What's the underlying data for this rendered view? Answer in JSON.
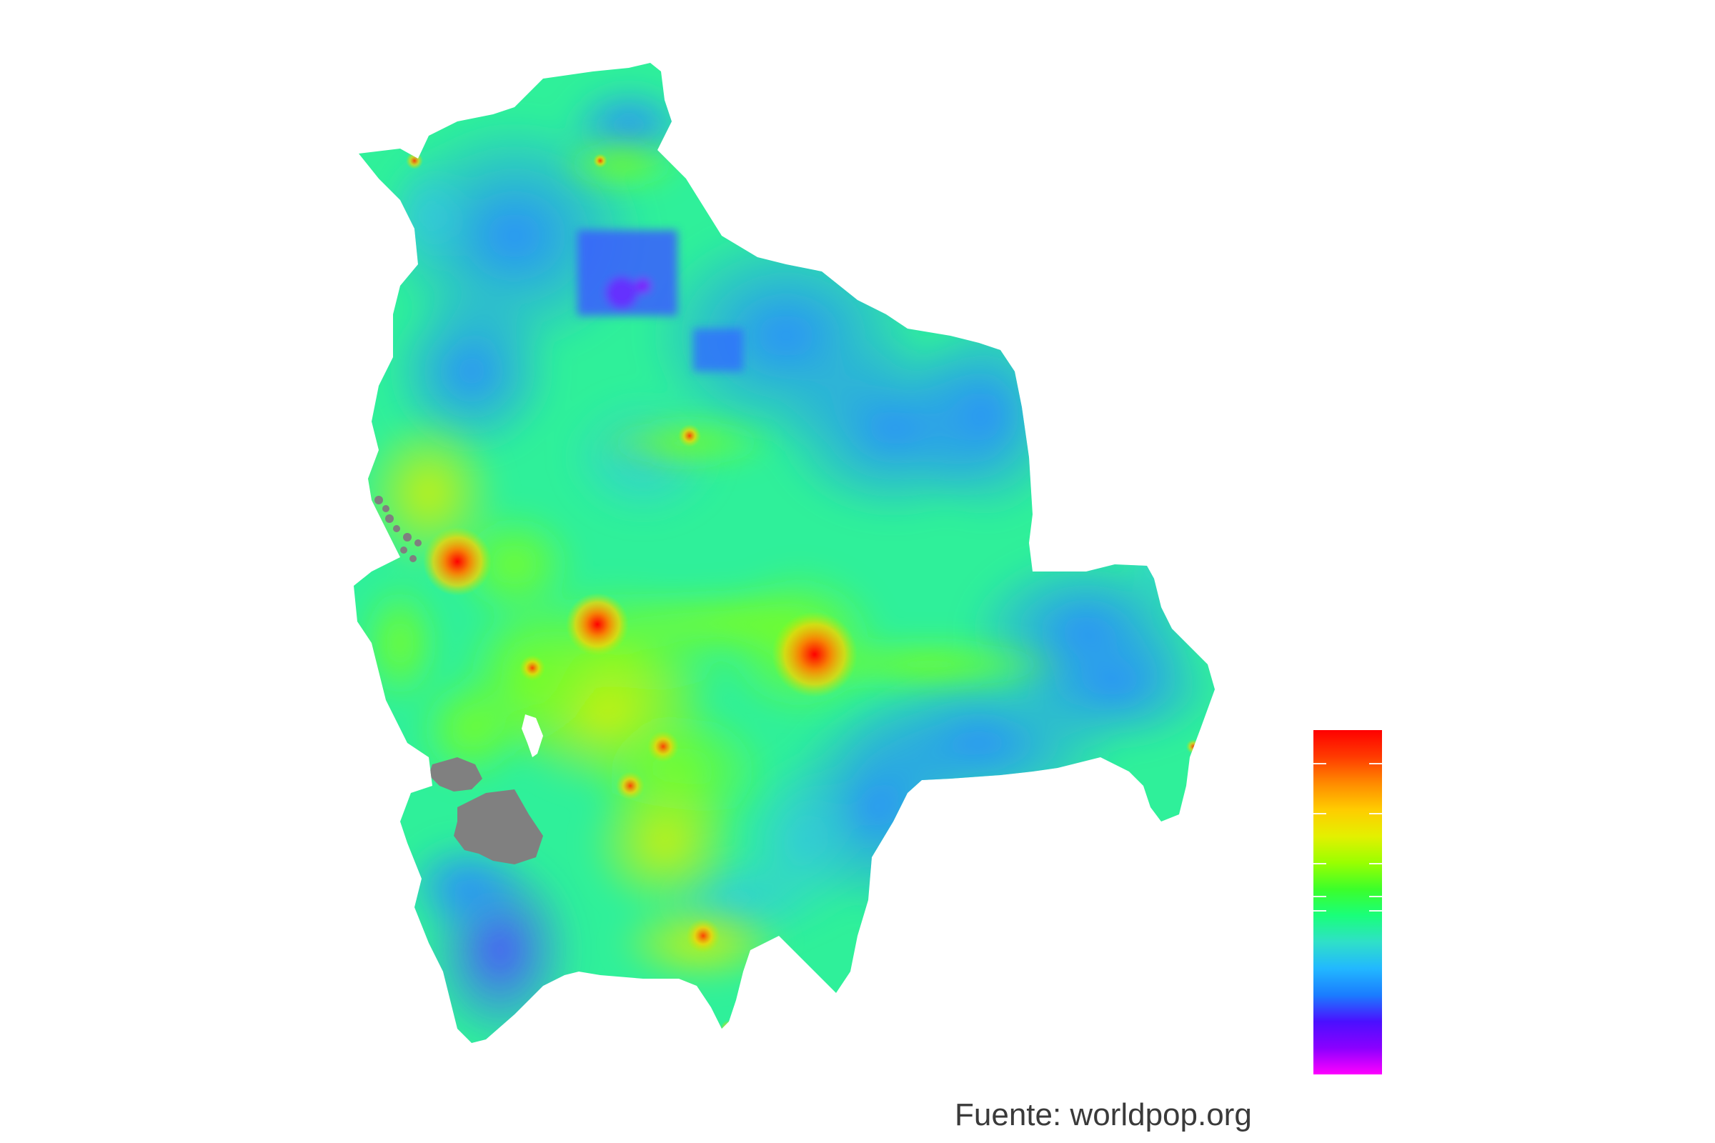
{
  "map": {
    "region": "Bolivia",
    "fill_palette": [
      "#ff00ff",
      "#6a00ff",
      "#1e7bff",
      "#2fd3c0",
      "#19ff7a",
      "#4dff1a",
      "#b6f000",
      "#ffd000",
      "#ff7a00",
      "#ff1a00"
    ],
    "no_data_color": "#808080",
    "base_color": "#2ff09a"
  },
  "legend": {
    "gradient": [
      "#ff00ff",
      "#8a00ff",
      "#4a10ff",
      "#1a7dff",
      "#22b8ff",
      "#2fe0c8",
      "#19ff7a",
      "#3cff2a",
      "#9aff00",
      "#e4f000",
      "#ffcc00",
      "#ff8a00",
      "#ff3a00",
      "#ff0000"
    ]
  },
  "caption": {
    "text": "Fuente: worldpop.org"
  }
}
